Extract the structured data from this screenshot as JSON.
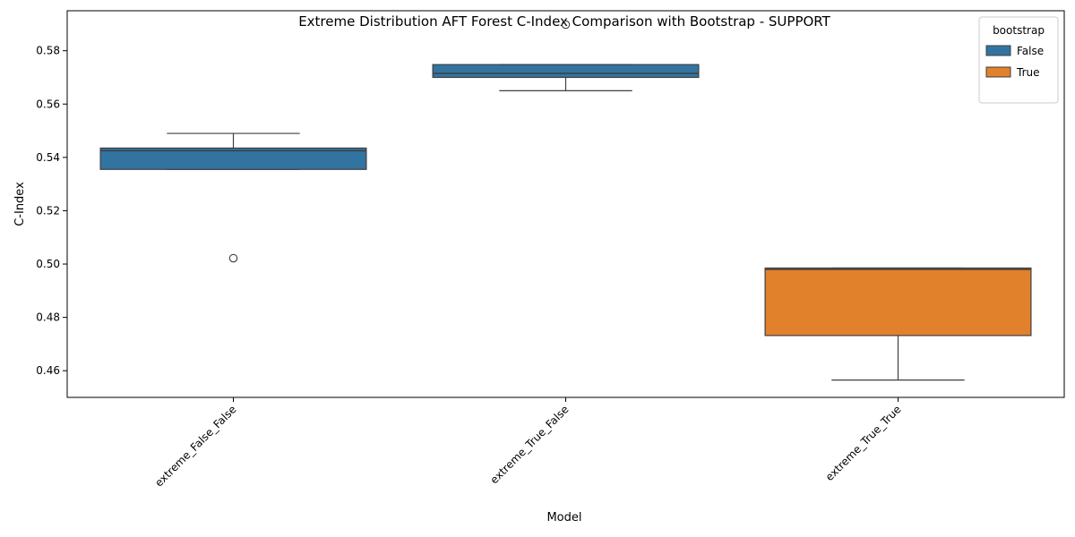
{
  "chart_data": {
    "type": "box",
    "title": "Extreme Distribution AFT Forest C-Index Comparison with Bootstrap - SUPPORT",
    "xlabel": "Model",
    "ylabel": "C-Index",
    "ylim": [
      0.45,
      0.595
    ],
    "yticks": [
      "0.46",
      "0.48",
      "0.50",
      "0.52",
      "0.54",
      "0.56",
      "0.58"
    ],
    "categories": [
      "extreme_False_False",
      "extreme_True_False",
      "extreme_True_True"
    ],
    "legend": {
      "title": "bootstrap",
      "position": "top-right",
      "entries": [
        {
          "label": "False",
          "color": "#3274a1"
        },
        {
          "label": "True",
          "color": "#e1812c"
        }
      ]
    },
    "boxes": [
      {
        "category": "extreme_False_False",
        "bootstrap": "False",
        "color": "#3274a1",
        "whisker_low": 0.5355,
        "q1": 0.5355,
        "median": 0.5425,
        "q3": 0.5435,
        "whisker_high": 0.549,
        "outliers": [
          0.5022
        ]
      },
      {
        "category": "extreme_True_False",
        "bootstrap": "False",
        "color": "#3274a1",
        "whisker_low": 0.565,
        "q1": 0.57,
        "median": 0.5715,
        "q3": 0.5748,
        "whisker_high": 0.5748,
        "outliers": [
          0.5898
        ]
      },
      {
        "category": "extreme_True_True",
        "bootstrap": "True",
        "color": "#e1812c",
        "whisker_low": 0.4565,
        "q1": 0.4732,
        "median": 0.498,
        "q3": 0.4985,
        "whisker_high": 0.4985,
        "outliers": []
      }
    ]
  }
}
